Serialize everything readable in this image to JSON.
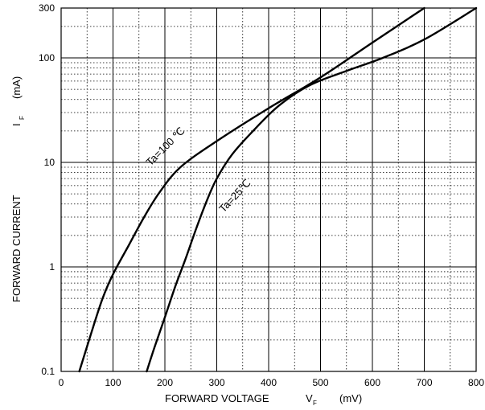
{
  "chart_data": {
    "type": "line",
    "title": "",
    "xscale": "linear",
    "yscale": "log",
    "xlim": [
      0,
      800
    ],
    "ylim": [
      0.1,
      300
    ],
    "xticks": [
      "0",
      "100",
      "200",
      "300",
      "400",
      "500",
      "600",
      "700",
      "800"
    ],
    "yticks": [
      "0.1",
      "1",
      "10",
      "100",
      "300"
    ],
    "xlabel": {
      "main": "FORWARD VOLTAGE",
      "symbol": "V",
      "subscript": "F",
      "unit": "(mV)"
    },
    "ylabel": {
      "main": "FORWARD CURRENT",
      "symbol": "I",
      "subscript": "F",
      "unit": "(mA)"
    },
    "grid": true,
    "series": [
      {
        "name": "Ta=100 ℃",
        "x": [
          35,
          60,
          80,
          100,
          130,
          160,
          190,
          230,
          300,
          400,
          500,
          600,
          700
        ],
        "y": [
          0.1,
          0.25,
          0.5,
          0.85,
          1.6,
          3,
          5.2,
          9,
          16,
          33,
          65,
          140,
          300
        ]
      },
      {
        "name": "Ta=25℃",
        "x": [
          165,
          180,
          200,
          220,
          240,
          260,
          280,
          300,
          330,
          370,
          420,
          480,
          550,
          620,
          700,
          800
        ],
        "y": [
          0.1,
          0.17,
          0.33,
          0.65,
          1.2,
          2.3,
          4.2,
          7,
          12,
          20,
          35,
          55,
          75,
          100,
          150,
          300
        ]
      }
    ],
    "annotations": [
      "Ta=100 ℃",
      "Ta=25℃"
    ]
  }
}
